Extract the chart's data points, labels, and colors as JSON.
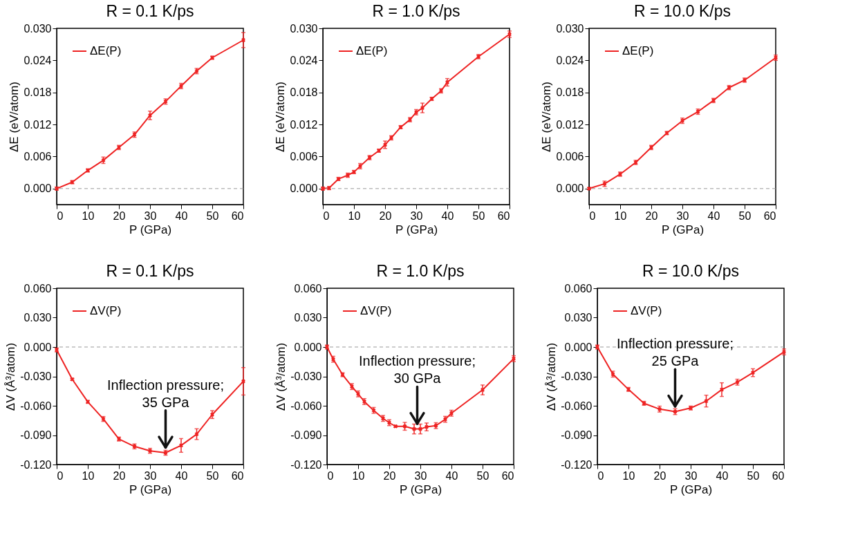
{
  "chart_data": [
    {
      "type": "line",
      "title": "R = 0.1 K/ps",
      "xlabel": "P (GPa)",
      "ylabel": "ΔE (eV/atom)",
      "legend": "top left",
      "marker": "cross",
      "line_style": "solid",
      "x": [
        0,
        5,
        10,
        15,
        20,
        25,
        30,
        35,
        40,
        45,
        50,
        60
      ],
      "series": [
        {
          "name": "ΔE(P)",
          "color": "#ee2222",
          "values": [
            0.0,
            0.0012,
            0.0034,
            0.0053,
            0.0077,
            0.0101,
            0.0137,
            0.0163,
            0.0192,
            0.022,
            0.0245,
            0.0278
          ],
          "errors": [
            0.0003,
            0.0003,
            0.0003,
            0.0006,
            0.0004,
            0.0005,
            0.0008,
            0.0005,
            0.0005,
            0.0005,
            0.0003,
            0.0014
          ]
        }
      ],
      "xlim": [
        0,
        60
      ],
      "xticks": [
        0,
        10,
        20,
        30,
        40,
        50,
        60
      ],
      "ylim": [
        -0.003,
        0.03
      ],
      "yticks": [
        {
          "value": 0,
          "label": "0.000"
        },
        {
          "value": 0.006,
          "label": "0.006"
        },
        {
          "value": 0.012,
          "label": "0.012"
        },
        {
          "value": 0.018,
          "label": "0.018"
        },
        {
          "value": 0.024,
          "label": "0.024"
        },
        {
          "value": 0.03,
          "label": "0.030"
        }
      ],
      "ref_lines": [
        {
          "axis": "y",
          "value": 0,
          "color": "#999999",
          "line_style": "dashed"
        }
      ]
    },
    {
      "type": "line",
      "title": "R = 1.0 K/ps",
      "xlabel": "P (GPa)",
      "ylabel": "ΔE (eV/atom)",
      "legend": "top left",
      "marker": "cross",
      "line_style": "solid",
      "x": [
        0,
        2,
        5,
        8,
        10,
        12,
        15,
        18,
        20,
        22,
        25,
        28,
        30,
        32,
        35,
        38,
        40,
        50,
        60
      ],
      "series": [
        {
          "name": "ΔE(P)",
          "color": "#ee2222",
          "values": [
            0.0,
            0.0001,
            0.0018,
            0.0025,
            0.0031,
            0.0042,
            0.0058,
            0.0071,
            0.0082,
            0.0095,
            0.0115,
            0.0129,
            0.0143,
            0.0151,
            0.0168,
            0.0183,
            0.0199,
            0.0247,
            0.0289
          ],
          "errors": [
            0.0003,
            0.0003,
            0.0003,
            0.0004,
            0.0003,
            0.0005,
            0.0004,
            0.0003,
            0.0007,
            0.0004,
            0.0003,
            0.0004,
            0.0005,
            0.0009,
            0.0003,
            0.0004,
            0.0007,
            0.0004,
            0.0006
          ]
        }
      ],
      "xlim": [
        0,
        60
      ],
      "xticks": [
        0,
        10,
        20,
        30,
        40,
        50,
        60
      ],
      "ylim": [
        -0.003,
        0.03
      ],
      "yticks": [
        {
          "value": 0,
          "label": "0.000"
        },
        {
          "value": 0.006,
          "label": "0.006"
        },
        {
          "value": 0.012,
          "label": "0.012"
        },
        {
          "value": 0.018,
          "label": "0.018"
        },
        {
          "value": 0.024,
          "label": "0.024"
        },
        {
          "value": 0.03,
          "label": "0.030"
        }
      ],
      "ref_lines": [
        {
          "axis": "y",
          "value": 0,
          "color": "#999999",
          "line_style": "dashed"
        }
      ]
    },
    {
      "type": "line",
      "title": "R = 10.0 K/ps",
      "xlabel": "P (GPa)",
      "ylabel": "ΔE (eV/atom)",
      "legend": "top left",
      "marker": "cross",
      "line_style": "solid",
      "x": [
        0,
        5,
        10,
        15,
        20,
        25,
        30,
        35,
        40,
        45,
        50,
        60
      ],
      "series": [
        {
          "name": "ΔE(P)",
          "color": "#ee2222",
          "values": [
            0.0,
            0.0009,
            0.0027,
            0.0049,
            0.0077,
            0.0104,
            0.0127,
            0.0144,
            0.0165,
            0.0189,
            0.0203,
            0.0245
          ],
          "errors": [
            0.0002,
            0.0005,
            0.0004,
            0.0004,
            0.0004,
            0.0003,
            0.0005,
            0.0005,
            0.0004,
            0.0004,
            0.0004,
            0.0005
          ]
        }
      ],
      "xlim": [
        0,
        60
      ],
      "xticks": [
        0,
        10,
        20,
        30,
        40,
        50,
        60
      ],
      "ylim": [
        -0.003,
        0.03
      ],
      "yticks": [
        {
          "value": 0,
          "label": "0.000"
        },
        {
          "value": 0.006,
          "label": "0.006"
        },
        {
          "value": 0.012,
          "label": "0.012"
        },
        {
          "value": 0.018,
          "label": "0.018"
        },
        {
          "value": 0.024,
          "label": "0.024"
        },
        {
          "value": 0.03,
          "label": "0.030"
        }
      ],
      "ref_lines": [
        {
          "axis": "y",
          "value": 0,
          "color": "#999999",
          "line_style": "dashed"
        }
      ]
    },
    {
      "type": "line",
      "title": "R = 0.1 K/ps",
      "xlabel": "P (GPa)",
      "ylabel": "ΔV (Å³/atom)",
      "legend": "top left",
      "marker": "cross",
      "line_style": "solid",
      "x": [
        0,
        5,
        10,
        15,
        20,
        25,
        30,
        35,
        40,
        45,
        50,
        60
      ],
      "series": [
        {
          "name": "ΔV(P)",
          "color": "#ee2222",
          "values": [
            -0.003,
            -0.033,
            -0.056,
            -0.0735,
            -0.094,
            -0.1015,
            -0.106,
            -0.108,
            -0.1005,
            -0.089,
            -0.069,
            -0.035
          ],
          "errors": [
            0.002,
            0.001,
            0.0015,
            0.0025,
            0.002,
            0.0025,
            0.0025,
            0.0025,
            0.007,
            0.0055,
            0.004,
            0.014
          ]
        }
      ],
      "xlim": [
        0,
        60
      ],
      "xticks": [
        0,
        10,
        20,
        30,
        40,
        50,
        60
      ],
      "ylim": [
        -0.12,
        0.06
      ],
      "yticks": [
        {
          "value": -0.12,
          "label": "-0.120"
        },
        {
          "value": -0.09,
          "label": "-0.090"
        },
        {
          "value": -0.06,
          "label": "-0.060"
        },
        {
          "value": -0.03,
          "label": "-0.030"
        },
        {
          "value": 0,
          "label": "0.000"
        },
        {
          "value": 0.03,
          "label": "0.030"
        },
        {
          "value": 0.06,
          "label": "0.060"
        }
      ],
      "ref_lines": [
        {
          "axis": "y",
          "value": 0,
          "color": "#999999",
          "line_style": "dashed"
        }
      ],
      "annotations": [
        {
          "text": "Inflection pressure;\n35 GPa",
          "x": 35,
          "y": -0.108
        }
      ]
    },
    {
      "type": "line",
      "title": "R = 1.0 K/ps",
      "xlabel": "P (GPa)",
      "ylabel": "ΔV (Å³/atom)",
      "legend": "top left",
      "marker": "cross",
      "line_style": "solid",
      "x": [
        0,
        2,
        5,
        8,
        10,
        12,
        15,
        18,
        20,
        22,
        25,
        28,
        30,
        32,
        35,
        38,
        40,
        50,
        60
      ],
      "series": [
        {
          "name": "ΔV(P)",
          "color": "#ee2222",
          "values": [
            0.0,
            -0.0125,
            -0.0283,
            -0.0404,
            -0.0479,
            -0.0557,
            -0.0647,
            -0.0729,
            -0.0773,
            -0.081,
            -0.081,
            -0.0837,
            -0.0837,
            -0.0816,
            -0.0803,
            -0.0738,
            -0.0676,
            -0.0438,
            -0.0119
          ],
          "errors": [
            0.002,
            0.003,
            0.002,
            0.003,
            0.003,
            0.003,
            0.003,
            0.003,
            0.003,
            0.001,
            0.004,
            0.005,
            0.005,
            0.004,
            0.003,
            0.003,
            0.003,
            0.005,
            0.003
          ]
        }
      ],
      "xlim": [
        0,
        60
      ],
      "xticks": [
        0,
        10,
        20,
        30,
        40,
        50,
        60
      ],
      "ylim": [
        -0.12,
        0.06
      ],
      "yticks": [
        {
          "value": -0.12,
          "label": "-0.120"
        },
        {
          "value": -0.09,
          "label": "-0.090"
        },
        {
          "value": -0.06,
          "label": "-0.060"
        },
        {
          "value": -0.03,
          "label": "-0.030"
        },
        {
          "value": 0,
          "label": "0.000"
        },
        {
          "value": 0.03,
          "label": "0.030"
        },
        {
          "value": 0.06,
          "label": "0.060"
        }
      ],
      "ref_lines": [
        {
          "axis": "y",
          "value": 0,
          "color": "#999999",
          "line_style": "dashed"
        }
      ],
      "annotations": [
        {
          "text": "Inflection pressure;\n30 GPa",
          "x": 29,
          "y": -0.0837
        }
      ]
    },
    {
      "type": "line",
      "title": "R = 10.0 K/ps",
      "xlabel": "P (GPa)",
      "ylabel": "ΔV (Å³/atom)",
      "legend": "top left",
      "marker": "cross",
      "line_style": "solid",
      "x": [
        0,
        5,
        10,
        15,
        20,
        25,
        30,
        35,
        40,
        45,
        50,
        60
      ],
      "series": [
        {
          "name": "ΔV(P)",
          "color": "#ee2222",
          "values": [
            0.0,
            -0.0277,
            -0.0433,
            -0.0575,
            -0.0634,
            -0.066,
            -0.0623,
            -0.0552,
            -0.0435,
            -0.0359,
            -0.0262,
            -0.005
          ],
          "errors": [
            0.002,
            0.003,
            0.002,
            0.002,
            0.003,
            0.003,
            0.002,
            0.006,
            0.007,
            0.003,
            0.004,
            0.003
          ]
        }
      ],
      "xlim": [
        0,
        60
      ],
      "xticks": [
        0,
        10,
        20,
        30,
        40,
        50,
        60
      ],
      "ylim": [
        -0.12,
        0.06
      ],
      "yticks": [
        {
          "value": -0.12,
          "label": "-0.120"
        },
        {
          "value": -0.09,
          "label": "-0.090"
        },
        {
          "value": -0.06,
          "label": "-0.060"
        },
        {
          "value": -0.03,
          "label": "-0.030"
        },
        {
          "value": 0,
          "label": "0.000"
        },
        {
          "value": 0.03,
          "label": "0.030"
        },
        {
          "value": 0.06,
          "label": "0.060"
        }
      ],
      "ref_lines": [
        {
          "axis": "y",
          "value": 0,
          "color": "#999999",
          "line_style": "dashed"
        }
      ],
      "annotations": [
        {
          "text": "Inflection pressure;\n25 GPa",
          "x": 25,
          "y": -0.066
        }
      ]
    }
  ]
}
